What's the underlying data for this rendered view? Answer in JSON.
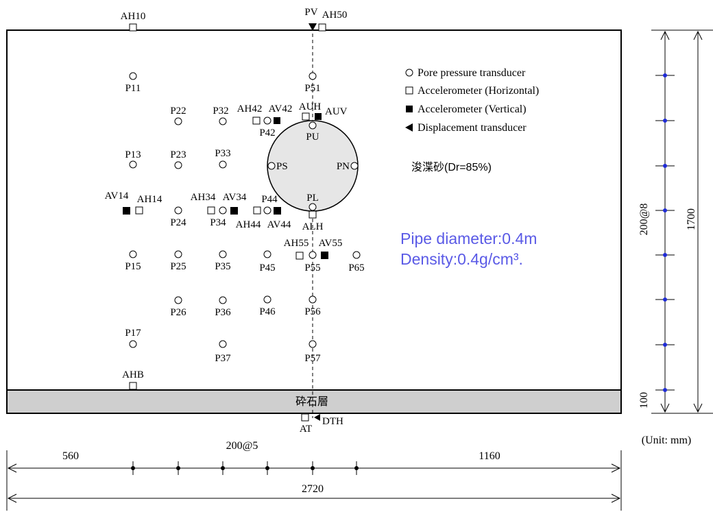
{
  "legend": {
    "pore_pressure": "Pore pressure transducer",
    "acc_h": "Accelerometer (Horizontal)",
    "acc_v": "Accelerometer (Vertical)",
    "disp": "Displacement transducer"
  },
  "soil_label": "浚渫砂(Dr=85%)",
  "gravel_label": "砕石層",
  "pipe_note": {
    "diameter": "Pipe diameter:0.4m",
    "density": "Density:0.4g/cm³.",
    "color": "#5a5ae6"
  },
  "dims": {
    "total_width": "2720",
    "left_offset": "560",
    "spacing": "200@5",
    "right_offset": "1160",
    "height_total": "1700",
    "height_spacing": "200@8",
    "base_layer": "100",
    "unit": "(Unit: mm)"
  },
  "pipe_sensors": {
    "PU": "PU",
    "PS": "PS",
    "PN": "PN",
    "PL": "PL",
    "AUH": "AUH",
    "AUV": "AUV",
    "ALH": "ALH"
  },
  "top_sensors": {
    "AH10": "AH10",
    "PV": "PV",
    "AH50": "AH50"
  },
  "bottom_sensors": {
    "AT": "AT",
    "DTH": "DTH",
    "AHB": "AHB"
  },
  "pore_labels": {
    "P11": "P11",
    "P13": "P13",
    "P15": "P15",
    "P17": "P17",
    "P22": "P22",
    "P23": "P23",
    "P24": "P24",
    "P25": "P25",
    "P26": "P26",
    "P32": "P32",
    "P33": "P33",
    "P34": "P34",
    "P35": "P35",
    "P36": "P36",
    "P37": "P37",
    "P42": "P42",
    "P44": "P44",
    "P45": "P45",
    "P46": "P46",
    "P51": "P51",
    "P55": "P55",
    "P56": "P56",
    "P57": "P57",
    "P65": "P65"
  },
  "acc_labels": {
    "AH42": "AH42",
    "AV42": "AV42",
    "AV14": "AV14",
    "AH14": "AH14",
    "AH34": "AH34",
    "AV34": "AV34",
    "AH44": "AH44",
    "AV44": "AV44",
    "AH55": "AH55",
    "AV55": "AV55"
  }
}
